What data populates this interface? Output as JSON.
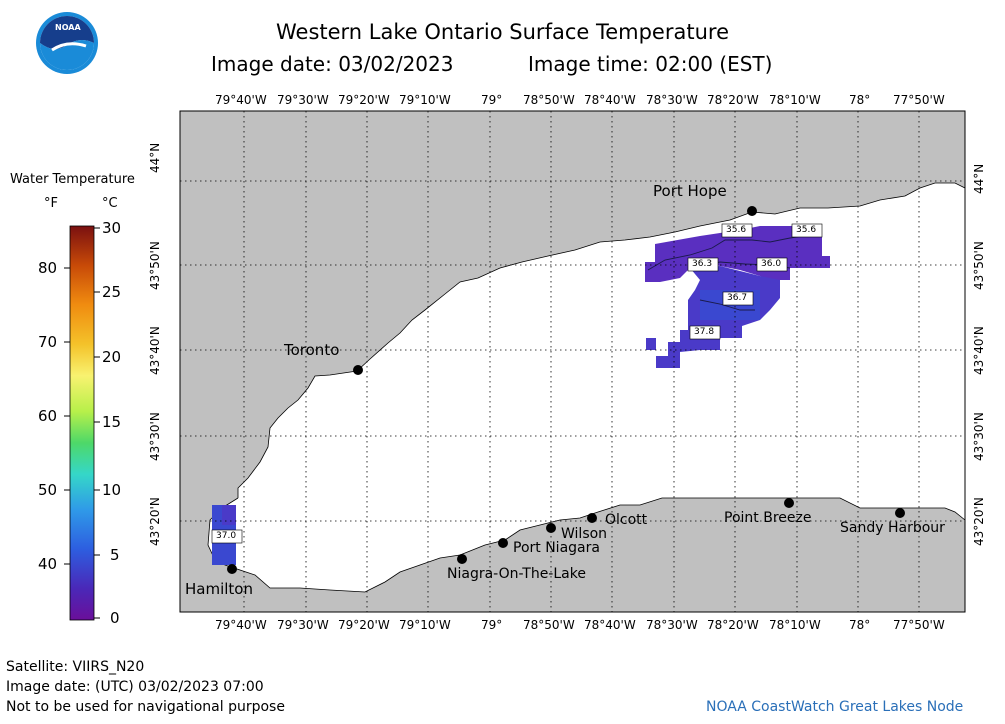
{
  "header": {
    "title": "Western Lake Ontario Surface Temperature",
    "image_date_label": "Image date: 03/02/2023",
    "image_time_label": "Image time: 02:00 (EST)"
  },
  "logo": {
    "text": "NOAA"
  },
  "legend": {
    "title": "Water Temperature",
    "unit_f": "°F",
    "unit_c": "°C",
    "f_ticks": [
      "80",
      "70",
      "60",
      "50",
      "40"
    ],
    "c_ticks": [
      "30",
      "25",
      "20",
      "15",
      "10",
      "5",
      "0"
    ],
    "color_stops": [
      "#7a1010",
      "#c84a08",
      "#f08c10",
      "#f4c22a",
      "#f8f270",
      "#b8f04a",
      "#4ed868",
      "#35d7c8",
      "#2f9ae8",
      "#2d5ee0",
      "#4a28b8",
      "#6a0f9a"
    ]
  },
  "map": {
    "lon_labels": [
      "79°40'W",
      "79°30'W",
      "79°20'W",
      "79°10'W",
      "79°",
      "78°50'W",
      "78°40'W",
      "78°30'W",
      "78°20'W",
      "78°10'W",
      "78°",
      "77°50'W"
    ],
    "lat_labels": [
      "44°N",
      "43°50'N",
      "43°40'N",
      "43°30'N",
      "43°20'N"
    ],
    "places": [
      {
        "name": "Port Hope"
      },
      {
        "name": "Toronto"
      },
      {
        "name": "Hamilton"
      },
      {
        "name": "Niagra-On-The-Lake"
      },
      {
        "name": "Port Niagara"
      },
      {
        "name": "Wilson"
      },
      {
        "name": "Olcott"
      },
      {
        "name": "Point Breeze"
      },
      {
        "name": "Sandy Harbour"
      }
    ],
    "contour_labels": [
      "35.6",
      "35.6",
      "36.3",
      "36.0",
      "36.7",
      "37.8",
      "37.0"
    ],
    "colors": {
      "land": "#c0c0c0",
      "water_nodata": "#ffffff",
      "temp_purple": "#5a2fc0",
      "temp_blue": "#3a48d0"
    }
  },
  "footer": {
    "satellite": "Satellite: VIIRS_N20",
    "utc_date": "Image date: (UTC) 03/02/2023  07:00",
    "disclaimer": "Not to be used for navigational purpose",
    "credit": "NOAA CoastWatch Great Lakes Node"
  }
}
